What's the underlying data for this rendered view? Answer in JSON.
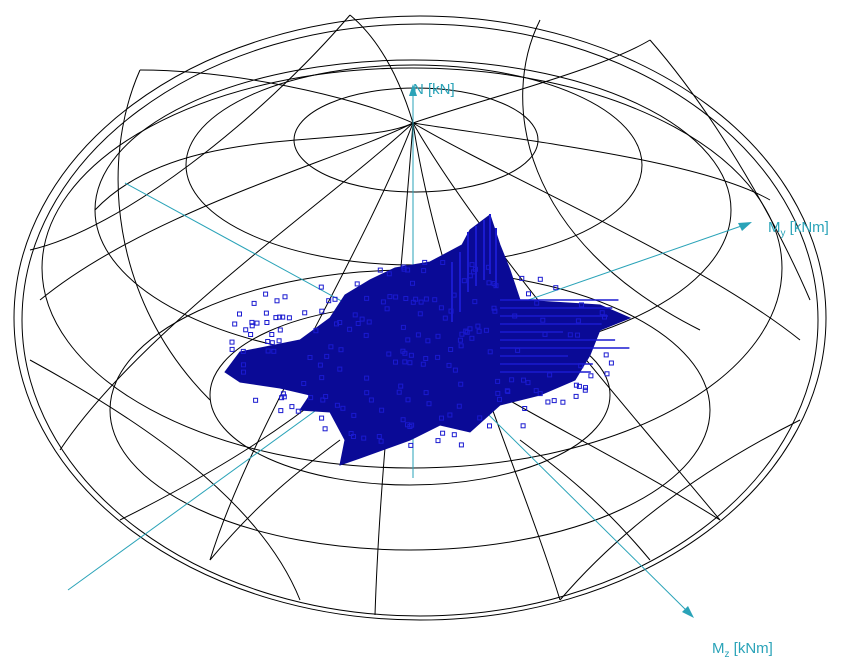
{
  "colors": {
    "background": "#ffffff",
    "wireframe": "#000000",
    "axis": "#2aa3b8",
    "cloud": "#0a0a96",
    "cloud_edge": "#1a1ad0"
  },
  "axes": {
    "n": {
      "text": "N [kN]"
    },
    "my": {
      "base": "M",
      "sub": "y",
      "unit": " [kNm]"
    },
    "mz": {
      "base": "M",
      "sub": "z",
      "unit": " [kNm]"
    }
  },
  "view": "3d-interaction-surface",
  "cloud_seed": 7
}
